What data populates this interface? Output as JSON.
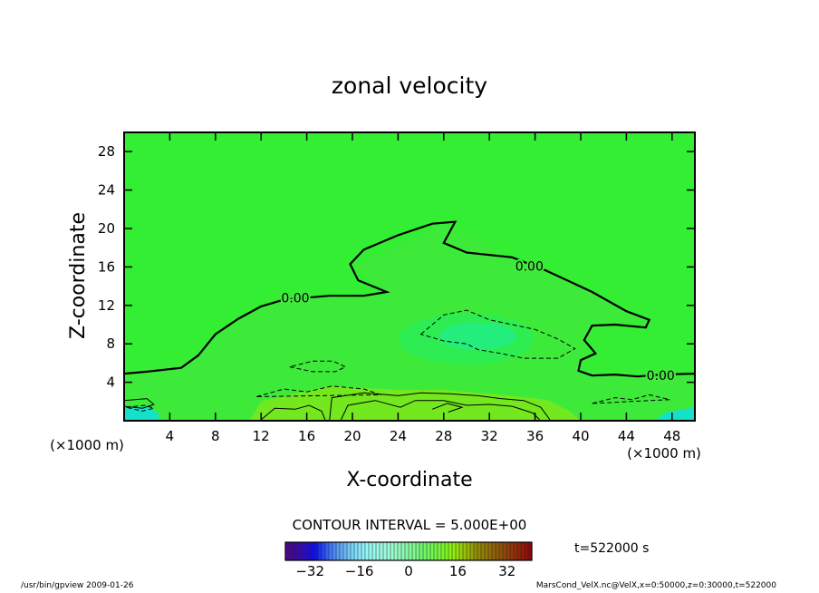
{
  "chart_data": {
    "type": "contour",
    "title": "zonal velocity",
    "xlabel": "X-coordinate",
    "ylabel": "Z-coordinate",
    "x_unit": "(×1000 m)",
    "z_unit": "(×1000 m)",
    "xlim": [
      0,
      50
    ],
    "ylim": [
      0,
      30
    ],
    "x_ticks": [
      4,
      8,
      12,
      16,
      20,
      24,
      28,
      32,
      36,
      40,
      44,
      48
    ],
    "y_ticks": [
      4,
      8,
      12,
      16,
      20,
      24,
      28
    ],
    "contour_label": "0.00",
    "contour_interval_text": "CONTOUR INTERVAL = 5.000E+00",
    "colorbar_range": [
      -40,
      40
    ],
    "colorbar_ticks": [
      -32,
      -16,
      0,
      16,
      32
    ],
    "time_label": "t=522000 s",
    "zero_contour_path": [
      [
        0,
        4.9
      ],
      [
        2,
        5.1
      ],
      [
        5,
        5.5
      ],
      [
        6.5,
        6.8
      ],
      [
        8,
        9
      ],
      [
        10,
        10.6
      ],
      [
        12,
        11.9
      ],
      [
        14,
        12.6
      ],
      [
        18,
        13
      ],
      [
        21,
        13
      ],
      [
        23,
        13.4
      ],
      [
        20.5,
        14.6
      ],
      [
        19.8,
        16.3
      ],
      [
        21,
        17.8
      ],
      [
        24,
        19.3
      ],
      [
        27,
        20.5
      ],
      [
        29,
        20.7
      ],
      [
        28,
        18.5
      ],
      [
        30,
        17.5
      ],
      [
        34,
        17
      ],
      [
        37,
        15.6
      ],
      [
        41,
        13.4
      ],
      [
        44,
        11.4
      ],
      [
        46,
        10.5
      ],
      [
        45.7,
        9.7
      ],
      [
        43,
        10
      ],
      [
        41,
        9.9
      ],
      [
        40.3,
        8.4
      ],
      [
        41.3,
        7
      ],
      [
        40,
        6.3
      ],
      [
        39.8,
        5.2
      ],
      [
        41,
        4.7
      ],
      [
        43,
        4.8
      ],
      [
        45,
        4.6
      ],
      [
        47,
        4.8
      ],
      [
        50,
        4.9
      ]
    ],
    "zero_contour_labels": [
      [
        15,
        12.8
      ],
      [
        35.5,
        16.1
      ],
      [
        47,
        4.7
      ]
    ],
    "negative_contours": [
      [
        [
          26,
          9
        ],
        [
          28,
          11
        ],
        [
          30,
          11.5
        ],
        [
          32,
          10.5
        ],
        [
          34,
          10
        ],
        [
          36,
          9.5
        ],
        [
          38,
          8.5
        ],
        [
          39.5,
          7.5
        ],
        [
          38,
          6.5
        ],
        [
          35,
          6.5
        ],
        [
          33,
          7
        ],
        [
          31,
          7.4
        ],
        [
          30,
          8
        ],
        [
          28,
          8.3
        ]
      ],
      [
        [
          14.5,
          5.6
        ],
        [
          16.5,
          5.1
        ],
        [
          18.5,
          5.1
        ],
        [
          19.4,
          5.6
        ],
        [
          18.3,
          6.2
        ],
        [
          16.5,
          6.2
        ]
      ],
      [
        [
          11.6,
          2.5
        ],
        [
          14,
          3.3
        ],
        [
          16,
          3
        ],
        [
          18.2,
          3.6
        ],
        [
          21,
          3.3
        ],
        [
          22.5,
          2.7
        ]
      ],
      [
        [
          41,
          1.8
        ],
        [
          43,
          2.4
        ],
        [
          44.5,
          2.2
        ],
        [
          46,
          2.7
        ],
        [
          47.8,
          2.2
        ]
      ],
      [
        [
          0.2,
          1.4
        ],
        [
          1.8,
          1.6
        ],
        [
          2.6,
          1.3
        ],
        [
          1.6,
          1
        ]
      ]
    ],
    "positive_contours": [
      [
        [
          18,
          0.1
        ],
        [
          18.2,
          2.4
        ],
        [
          21,
          2.9
        ],
        [
          24,
          2.6
        ],
        [
          26,
          2.9
        ],
        [
          28.5,
          2.8
        ],
        [
          31,
          2.6
        ],
        [
          33,
          2.3
        ],
        [
          35,
          2.1
        ],
        [
          36.5,
          1.4
        ],
        [
          37.3,
          0.1
        ]
      ],
      [
        [
          19,
          0.1
        ],
        [
          19.6,
          1.6
        ],
        [
          22,
          2.1
        ],
        [
          24.2,
          1.4
        ],
        [
          25.5,
          2.1
        ],
        [
          28,
          2.1
        ],
        [
          30,
          1.6
        ],
        [
          32,
          1.7
        ],
        [
          34,
          1.5
        ],
        [
          35.8,
          0.8
        ],
        [
          36.4,
          0.1
        ]
      ],
      [
        [
          12,
          0.1
        ],
        [
          13.2,
          1.3
        ],
        [
          15,
          1.2
        ],
        [
          16.2,
          1.6
        ],
        [
          17.3,
          1
        ],
        [
          17.6,
          0.1
        ]
      ],
      [
        [
          27,
          1.2
        ],
        [
          28.3,
          1.8
        ],
        [
          29.6,
          1.4
        ],
        [
          28.4,
          0.9
        ]
      ],
      [
        [
          0,
          2.1
        ],
        [
          2,
          2.3
        ],
        [
          2.6,
          1.7
        ],
        [
          1.6,
          1.3
        ],
        [
          0,
          1.5
        ]
      ]
    ],
    "colors": {
      "background": "#ffffff",
      "field_main": "#33ee33",
      "field_band": "#44e840",
      "field_cool": "#2bee5a",
      "field_core": "#20ec90",
      "field_warm": "#77e81e",
      "field_cyan": "#10e0d8",
      "line": "#000000"
    }
  },
  "footer": {
    "left": "/usr/bin/gpview  2009-01-26",
    "right": "MarsCond_VelX.nc@VelX,x=0:50000,z=0:30000,t=522000"
  }
}
